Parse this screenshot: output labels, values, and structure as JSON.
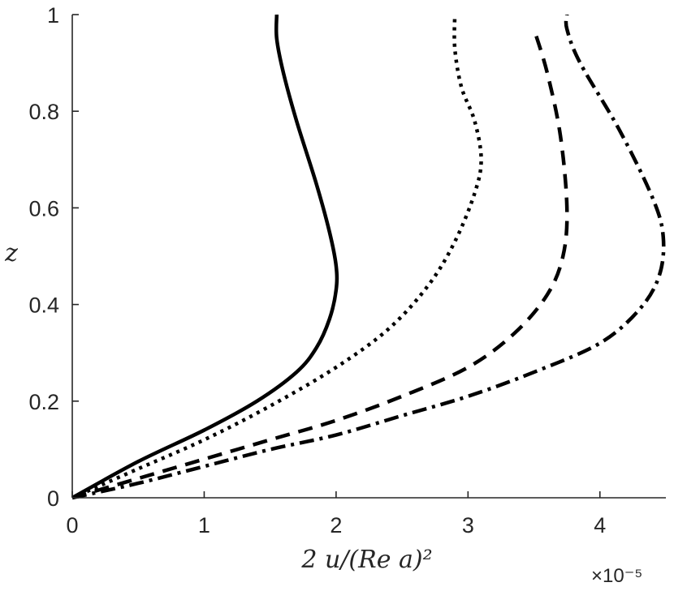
{
  "chart_data": {
    "type": "line",
    "xlabel": "2 u/(Re a)²",
    "ylabel": "z",
    "x_exponent_label": "×10⁻⁵",
    "xlim": [
      0,
      4.5
    ],
    "ylim": [
      0,
      1
    ],
    "x_ticks": [
      0,
      1,
      2,
      3,
      4
    ],
    "x_tick_labels": [
      "0",
      "1",
      "2",
      "3",
      "4"
    ],
    "y_ticks": [
      0,
      0.2,
      0.4,
      0.6,
      0.8,
      1
    ],
    "y_tick_labels": [
      "0",
      "0.2",
      "0.4",
      "0.6",
      "0.8",
      "1"
    ],
    "grid": false,
    "legend": "none",
    "line_color": "#000000",
    "series": [
      {
        "style": "solid",
        "x": [
          0,
          0.5,
          1.0,
          1.4,
          1.7,
          1.85,
          1.95,
          2.0,
          2.0,
          1.95,
          1.85,
          1.7,
          1.6,
          1.55,
          1.55
        ],
        "y": [
          0,
          0.075,
          0.14,
          0.2,
          0.26,
          0.31,
          0.37,
          0.43,
          0.48,
          0.55,
          0.65,
          0.78,
          0.88,
          0.95,
          1.0
        ]
      },
      {
        "style": "dotted",
        "x": [
          0,
          0.5,
          1.0,
          1.5,
          2.0,
          2.4,
          2.7,
          2.9,
          3.05,
          3.1,
          3.05,
          2.95,
          2.9,
          2.9
        ],
        "y": [
          0,
          0.06,
          0.12,
          0.19,
          0.27,
          0.35,
          0.44,
          0.53,
          0.63,
          0.7,
          0.78,
          0.85,
          0.93,
          1.0
        ]
      },
      {
        "style": "dashed",
        "x": [
          0,
          0.5,
          1.0,
          1.5,
          2.0,
          2.5,
          3.0,
          3.35,
          3.6,
          3.72,
          3.75,
          3.7,
          3.6,
          3.5
        ],
        "y": [
          0,
          0.04,
          0.08,
          0.12,
          0.16,
          0.21,
          0.27,
          0.34,
          0.42,
          0.5,
          0.6,
          0.75,
          0.88,
          0.97
        ]
      },
      {
        "style": "dash-dot",
        "x": [
          0,
          0.5,
          1.0,
          1.5,
          2.0,
          2.5,
          3.0,
          3.5,
          4.0,
          4.3,
          4.45,
          4.48,
          4.4,
          4.15,
          3.85,
          3.75,
          3.75
        ],
        "y": [
          0,
          0.03,
          0.065,
          0.1,
          0.13,
          0.17,
          0.21,
          0.26,
          0.32,
          0.39,
          0.46,
          0.54,
          0.62,
          0.76,
          0.9,
          0.97,
          1.0
        ]
      }
    ]
  }
}
